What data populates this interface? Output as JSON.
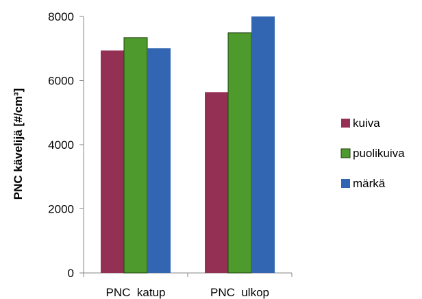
{
  "chart_data": {
    "type": "bar",
    "categories": [
      "PNC  katup",
      "PNC  ulkop"
    ],
    "series": [
      {
        "name": "kuiva",
        "values": [
          6940,
          5640
        ],
        "color": "#953055"
      },
      {
        "name": "puolikuiva",
        "values": [
          7340,
          7490
        ],
        "color": "#4e9a2d"
      },
      {
        "name": "märkä",
        "values": [
          7010,
          8000
        ],
        "color": "#3366b2"
      }
    ],
    "title": "",
    "xlabel": "",
    "ylabel": "PNC kävelijä [#/cm³]",
    "ylim": [
      0,
      8000
    ],
    "yticks": [
      "0",
      "2000",
      "4000",
      "6000",
      "8000"
    ],
    "grid": false,
    "legend": "right"
  }
}
